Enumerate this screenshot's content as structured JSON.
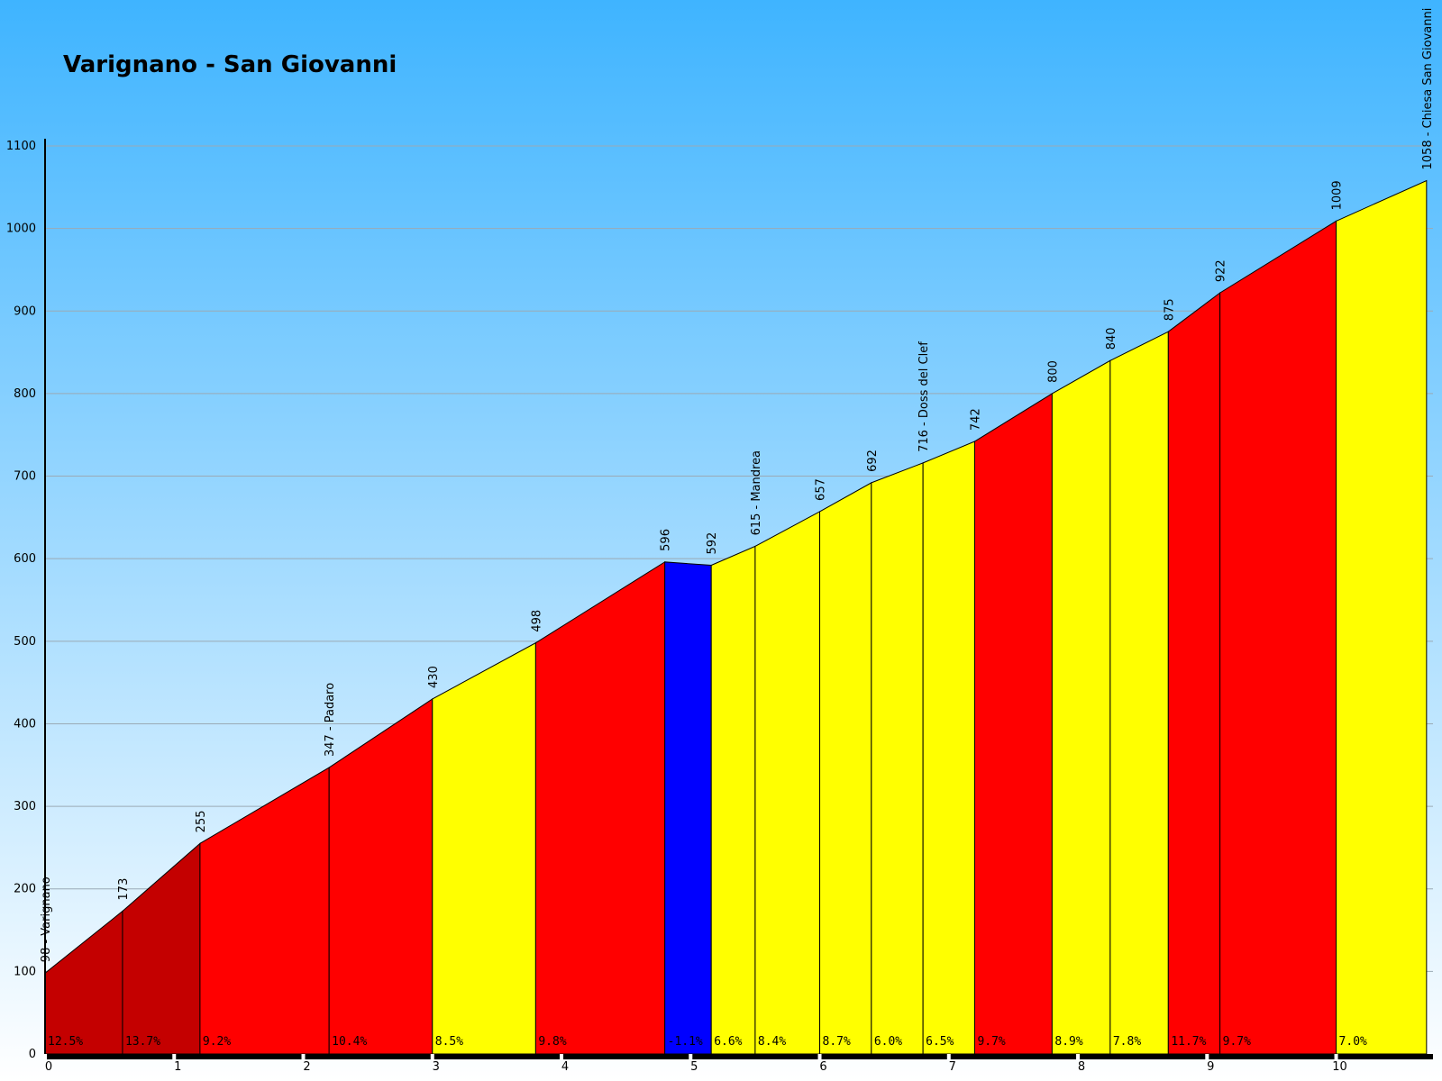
{
  "chart_data": {
    "type": "area",
    "title": "Varignano - San Giovanni",
    "xlabel": "",
    "ylabel": "",
    "xlim": [
      0,
      10.75
    ],
    "ylim": [
      0,
      1100
    ],
    "y_ticks": [
      0,
      100,
      200,
      300,
      400,
      500,
      600,
      700,
      800,
      900,
      1000,
      1100
    ],
    "x_ticks": [
      0,
      1,
      2,
      3,
      4,
      5,
      6,
      7,
      8,
      9,
      10
    ],
    "grid": true,
    "points": [
      {
        "x": 0.0,
        "y": 98,
        "label": "98 - Varignano"
      },
      {
        "x": 0.6,
        "y": 173,
        "label": "173"
      },
      {
        "x": 1.2,
        "y": 255,
        "label": "255"
      },
      {
        "x": 2.2,
        "y": 347,
        "label": "347  - Padaro"
      },
      {
        "x": 3.0,
        "y": 430,
        "label": "430"
      },
      {
        "x": 3.8,
        "y": 498,
        "label": "498"
      },
      {
        "x": 4.8,
        "y": 596,
        "label": "596"
      },
      {
        "x": 5.16,
        "y": 592,
        "label": "592"
      },
      {
        "x": 5.5,
        "y": 615,
        "label": "615  - Mandrea"
      },
      {
        "x": 6.0,
        "y": 657,
        "label": "657"
      },
      {
        "x": 6.4,
        "y": 692,
        "label": "692"
      },
      {
        "x": 6.8,
        "y": 716,
        "label": "716  - Doss del Clef"
      },
      {
        "x": 7.2,
        "y": 742,
        "label": "742"
      },
      {
        "x": 7.8,
        "y": 800,
        "label": "800"
      },
      {
        "x": 8.25,
        "y": 840,
        "label": "840"
      },
      {
        "x": 8.7,
        "y": 875,
        "label": "875"
      },
      {
        "x": 9.1,
        "y": 922,
        "label": "922"
      },
      {
        "x": 10.0,
        "y": 1009,
        "label": "1009"
      },
      {
        "x": 10.7,
        "y": 1058,
        "label": "1058 - Chiesa San Giovanni"
      }
    ],
    "segments": [
      {
        "gradient": "12.5%",
        "color": "#c40000"
      },
      {
        "gradient": "13.7%",
        "color": "#c40000"
      },
      {
        "gradient": "9.2%",
        "color": "#ff0000"
      },
      {
        "gradient": "10.4%",
        "color": "#ff0000"
      },
      {
        "gradient": "8.5%",
        "color": "#ffff00"
      },
      {
        "gradient": "9.8%",
        "color": "#ff0000"
      },
      {
        "gradient": "-1.1%",
        "color": "#0000ff"
      },
      {
        "gradient": "6.6%",
        "color": "#ffff00"
      },
      {
        "gradient": "8.4%",
        "color": "#ffff00"
      },
      {
        "gradient": "8.7%",
        "color": "#ffff00"
      },
      {
        "gradient": "6.0%",
        "color": "#ffff00"
      },
      {
        "gradient": "6.5%",
        "color": "#ffff00"
      },
      {
        "gradient": "9.7%",
        "color": "#ff0000"
      },
      {
        "gradient": "8.9%",
        "color": "#ffff00"
      },
      {
        "gradient": "7.8%",
        "color": "#ffff00"
      },
      {
        "gradient": "11.7%",
        "color": "#ff0000"
      },
      {
        "gradient": "9.7%",
        "color": "#ff0000"
      },
      {
        "gradient": "7.0%",
        "color": "#ffff00"
      }
    ],
    "colors": {
      "background_top": "#3fb4ff",
      "background_bottom": "#ffffff",
      "grid": "#9aaab5",
      "axis": "#000000"
    }
  }
}
